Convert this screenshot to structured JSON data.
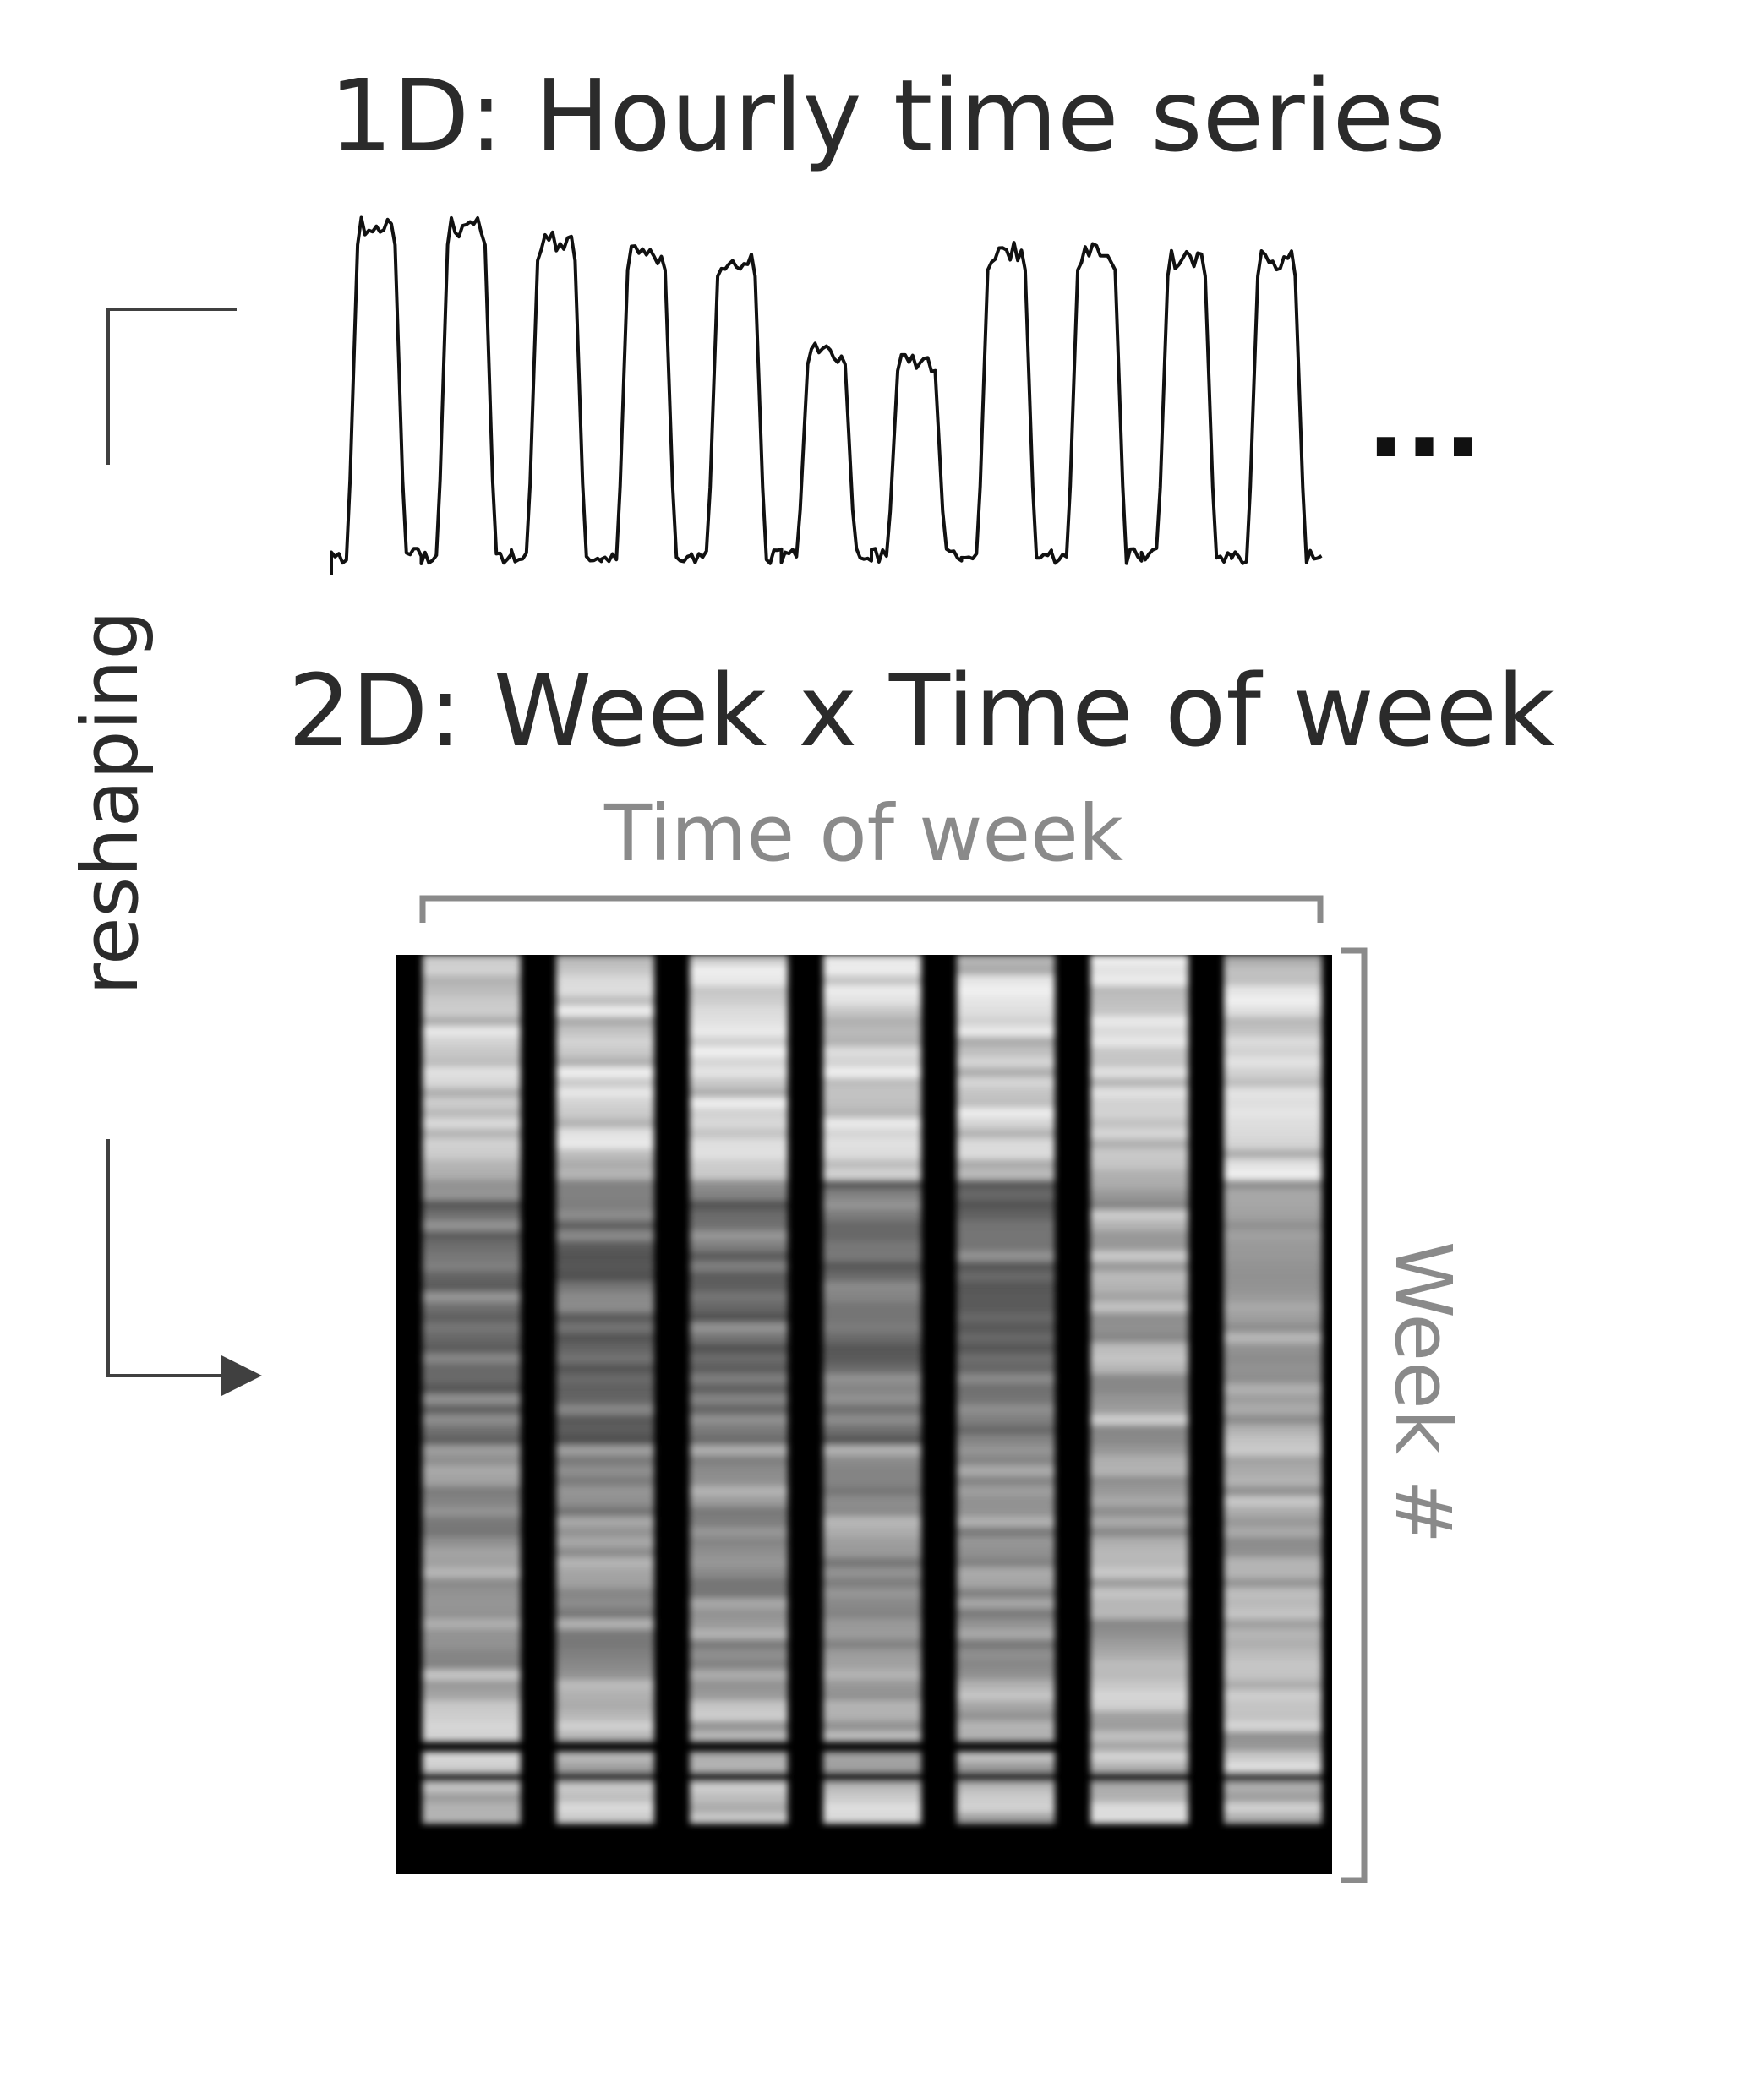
{
  "title_1d": "1D: Hourly time series",
  "title_2d": "2D: Week x Time of week",
  "ellipsis": "...",
  "reshaping_label": "reshaping",
  "x_bracket_label": "Time of week",
  "y_bracket_label": "Week #",
  "colors": {
    "text": "#2b2b2b",
    "bracket": "#8a8a8a",
    "arrow": "#404040",
    "heatmap_background": "#000000"
  },
  "series_1d": {
    "description_days": [
      "weekday",
      "weekday",
      "weekday",
      "weekday",
      "weekday",
      "weekend",
      "weekend",
      "weekday",
      "weekday",
      "weekday",
      "weekday"
    ],
    "peak_levels": [
      1.0,
      1.0,
      0.95,
      0.92,
      0.9,
      0.62,
      0.6,
      0.92,
      0.92,
      0.9,
      0.9
    ]
  },
  "heatmap": {
    "columns": 7,
    "column_types": [
      "weekday",
      "weekday",
      "weekday",
      "weekday",
      "weekday",
      "weekend",
      "weekend"
    ]
  }
}
